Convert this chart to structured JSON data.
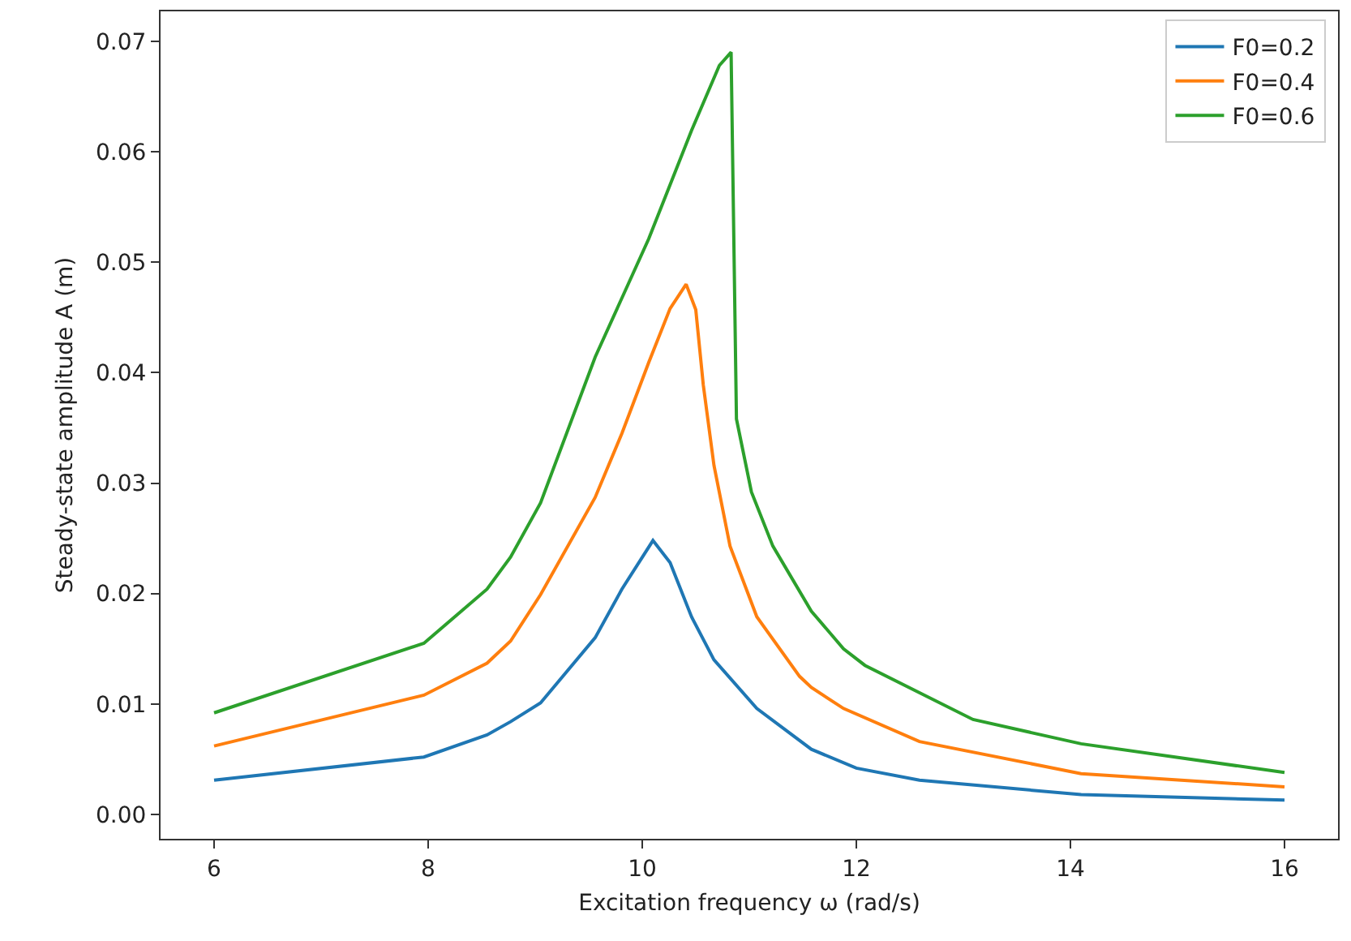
{
  "chart_data": {
    "type": "line",
    "xlabel": "Excitation frequency ω (rad/s)",
    "ylabel": "Steady-state amplitude A (m)",
    "xlim": [
      5.5,
      16.5
    ],
    "xticks": [
      6,
      8,
      10,
      12,
      14,
      16
    ],
    "ylim": [
      -0.0022,
      0.0727
    ],
    "yticks": [
      {
        "value": 0,
        "label": "0.00"
      },
      0.01,
      0.02,
      0.03,
      0.04,
      0.05,
      0.06,
      0.07
    ],
    "legend": "top right",
    "grid": false,
    "line_style": "solid",
    "marker": "none",
    "series": [
      {
        "name": "F0=0.2",
        "color": "#1f77b4",
        "x": [
          6,
          7.96,
          8.55,
          8.77,
          9.05,
          9.56,
          9.81,
          10.1,
          10.26,
          10.46,
          10.67,
          11.07,
          11.58,
          12.0,
          12.59,
          14.1,
          16.0
        ],
        "values": [
          0.0031,
          0.0052,
          0.0072,
          0.0084,
          0.0101,
          0.016,
          0.0204,
          0.0248,
          0.0228,
          0.0179,
          0.014,
          0.0096,
          0.0059,
          0.0042,
          0.0031,
          0.0018,
          0.0013
        ]
      },
      {
        "name": "F0=0.4",
        "color": "#ff7f0e",
        "x": [
          6,
          7.96,
          8.55,
          8.77,
          9.05,
          9.56,
          9.81,
          10.06,
          10.26,
          10.41,
          10.5,
          10.57,
          10.67,
          10.82,
          11.07,
          11.47,
          11.58,
          11.88,
          12.59,
          14.1,
          16.0
        ],
        "values": [
          0.0062,
          0.0108,
          0.0137,
          0.0157,
          0.0199,
          0.0287,
          0.0345,
          0.0409,
          0.0458,
          0.048,
          0.0457,
          0.0389,
          0.0316,
          0.0243,
          0.0179,
          0.0125,
          0.0115,
          0.0096,
          0.0066,
          0.0037,
          0.0025
        ]
      },
      {
        "name": "F0=0.6",
        "color": "#2ca02c",
        "x": [
          6,
          7.96,
          8.55,
          8.77,
          9.05,
          9.56,
          10.06,
          10.46,
          10.72,
          10.83,
          10.88,
          11.02,
          11.22,
          11.58,
          11.88,
          12.08,
          13.09,
          14.1,
          16.0
        ],
        "values": [
          0.0092,
          0.0155,
          0.0204,
          0.0233,
          0.0282,
          0.0414,
          0.0521,
          0.0619,
          0.0678,
          0.069,
          0.0358,
          0.0292,
          0.0243,
          0.0184,
          0.015,
          0.0135,
          0.0086,
          0.0064,
          0.0038
        ]
      }
    ]
  }
}
